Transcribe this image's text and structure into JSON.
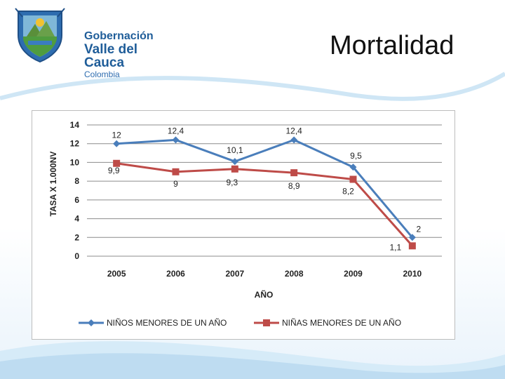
{
  "header": {
    "logo_line1": "Gobernación",
    "logo_line2": "Valle del Cauca",
    "logo_line3": "Colombia",
    "title": "Mortalidad"
  },
  "colors": {
    "series_boys": "#4a7ebb",
    "series_girls": "#be4b48",
    "grid": "#8c8c8c",
    "logo_blue": "#1f5d99"
  },
  "chart_data": {
    "type": "line",
    "categories": [
      "2005",
      "2006",
      "2007",
      "2008",
      "2009",
      "2010"
    ],
    "series": [
      {
        "name": "NIÑOS MENORES  DE UN AÑO",
        "values": [
          12,
          12.4,
          10.1,
          12.4,
          9.5,
          2
        ],
        "labels": [
          "12",
          "12,4",
          "10,1",
          "12,4",
          "9,5",
          "2"
        ],
        "marker": "diamond"
      },
      {
        "name": "NIÑAS MENORES  DE UN AÑO",
        "values": [
          9.9,
          9,
          9.3,
          8.9,
          8.2,
          1.1
        ],
        "labels": [
          "9,9",
          "9",
          "9,3",
          "8,9",
          "8,2",
          "1,1"
        ],
        "marker": "square"
      }
    ],
    "y_ticks": [
      "0",
      "2",
      "4",
      "6",
      "8",
      "10",
      "12",
      "14"
    ],
    "ylim": [
      0,
      14
    ],
    "xlabel": "AÑO",
    "ylabel": "TASA X 1.000NV",
    "grid": true,
    "legend": "bottom"
  }
}
